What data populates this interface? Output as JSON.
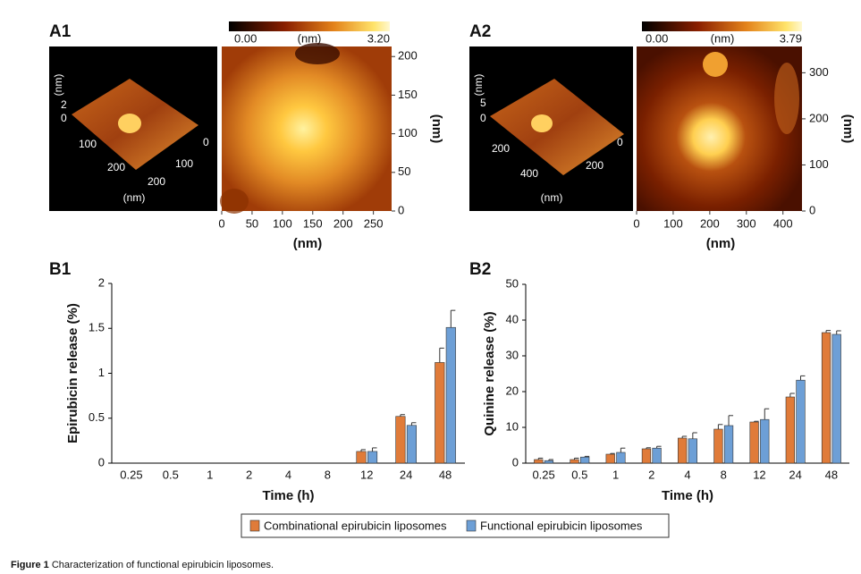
{
  "afm_panels": [
    {
      "label": "A1",
      "colorbar": {
        "min": "0.00",
        "unit": "(nm)",
        "max": "3.20"
      },
      "view3d": {
        "z_label": "(nm)",
        "z_ticks": [
          "2",
          "0"
        ],
        "x_ticks": [
          "100",
          "200"
        ],
        "y_ticks": [
          "0",
          "100",
          "200"
        ],
        "xy_label": "(nm)"
      },
      "image": {
        "xlim": [
          0,
          280
        ],
        "xticks": [
          0,
          50,
          100,
          150,
          200,
          250
        ],
        "ylim": [
          0,
          213
        ],
        "yticks": [
          0,
          50,
          100,
          150,
          200
        ],
        "xlabel": "(nm)",
        "ylabel": "(nm)"
      }
    },
    {
      "label": "A2",
      "colorbar": {
        "min": "0.00",
        "unit": "(nm)",
        "max": "3.79"
      },
      "view3d": {
        "z_label": "(nm)",
        "z_ticks": [
          "5",
          "0"
        ],
        "x_ticks": [
          "200",
          "400"
        ],
        "y_ticks": [
          "0",
          "200"
        ],
        "xy_label": "(nm)"
      },
      "image": {
        "xlim": [
          0,
          452
        ],
        "xticks": [
          0,
          100,
          200,
          300,
          400
        ],
        "ylim": [
          0,
          357
        ],
        "yticks": [
          0,
          100,
          200,
          300
        ],
        "xlabel": "(nm)",
        "ylabel": "(nm)"
      }
    }
  ],
  "chart_data": [
    {
      "type": "bar",
      "title": "B1",
      "xlabel": "Time (h)",
      "ylabel": "Epirubicin release (%)",
      "categories": [
        "0.25",
        "0.5",
        "1",
        "2",
        "4",
        "8",
        "12",
        "24",
        "48"
      ],
      "ylim": [
        0,
        2
      ],
      "yticks": [
        0,
        0.5,
        1,
        1.5,
        2
      ],
      "series": [
        {
          "color": "#e07b39",
          "values": [
            0,
            0,
            0,
            0,
            0,
            0,
            0.13,
            0.52,
            1.12
          ],
          "errors": [
            0,
            0,
            0,
            0,
            0,
            0,
            0.02,
            0.02,
            0.16
          ]
        },
        {
          "color": "#6d9fd6",
          "values": [
            0,
            0,
            0,
            0,
            0,
            0,
            0.13,
            0.42,
            1.51
          ],
          "errors": [
            0,
            0,
            0,
            0,
            0,
            0,
            0.04,
            0.03,
            0.19
          ]
        }
      ]
    },
    {
      "type": "bar",
      "title": "B2",
      "xlabel": "Time (h)",
      "ylabel": "Quinine release (%)",
      "categories": [
        "0.25",
        "0.5",
        "1",
        "2",
        "4",
        "8",
        "12",
        "24",
        "48"
      ],
      "ylim": [
        0,
        50
      ],
      "yticks": [
        0,
        10,
        20,
        30,
        40,
        50
      ],
      "series": [
        {
          "name": "Combinational epirubicin liposomes",
          "color": "#e07b39",
          "values": [
            1.0,
            1.0,
            2.5,
            4.0,
            7.0,
            9.5,
            11.5,
            18.5,
            36.5
          ],
          "errors": [
            0.4,
            0.4,
            0.2,
            0.3,
            0.5,
            1.3,
            0.2,
            1.0,
            0.6
          ]
        },
        {
          "name": "Functional epirubicin liposomes",
          "color": "#6d9fd6",
          "values": [
            0.7,
            1.7,
            3.0,
            4.2,
            6.8,
            10.5,
            12.2,
            23.2,
            36.0
          ],
          "errors": [
            0.3,
            0.2,
            1.2,
            0.5,
            1.7,
            2.8,
            3.0,
            1.2,
            1.0
          ]
        }
      ]
    }
  ],
  "figure_caption": {
    "label": "Figure 1",
    "text": "Characterization of functional epirubicin liposomes."
  }
}
